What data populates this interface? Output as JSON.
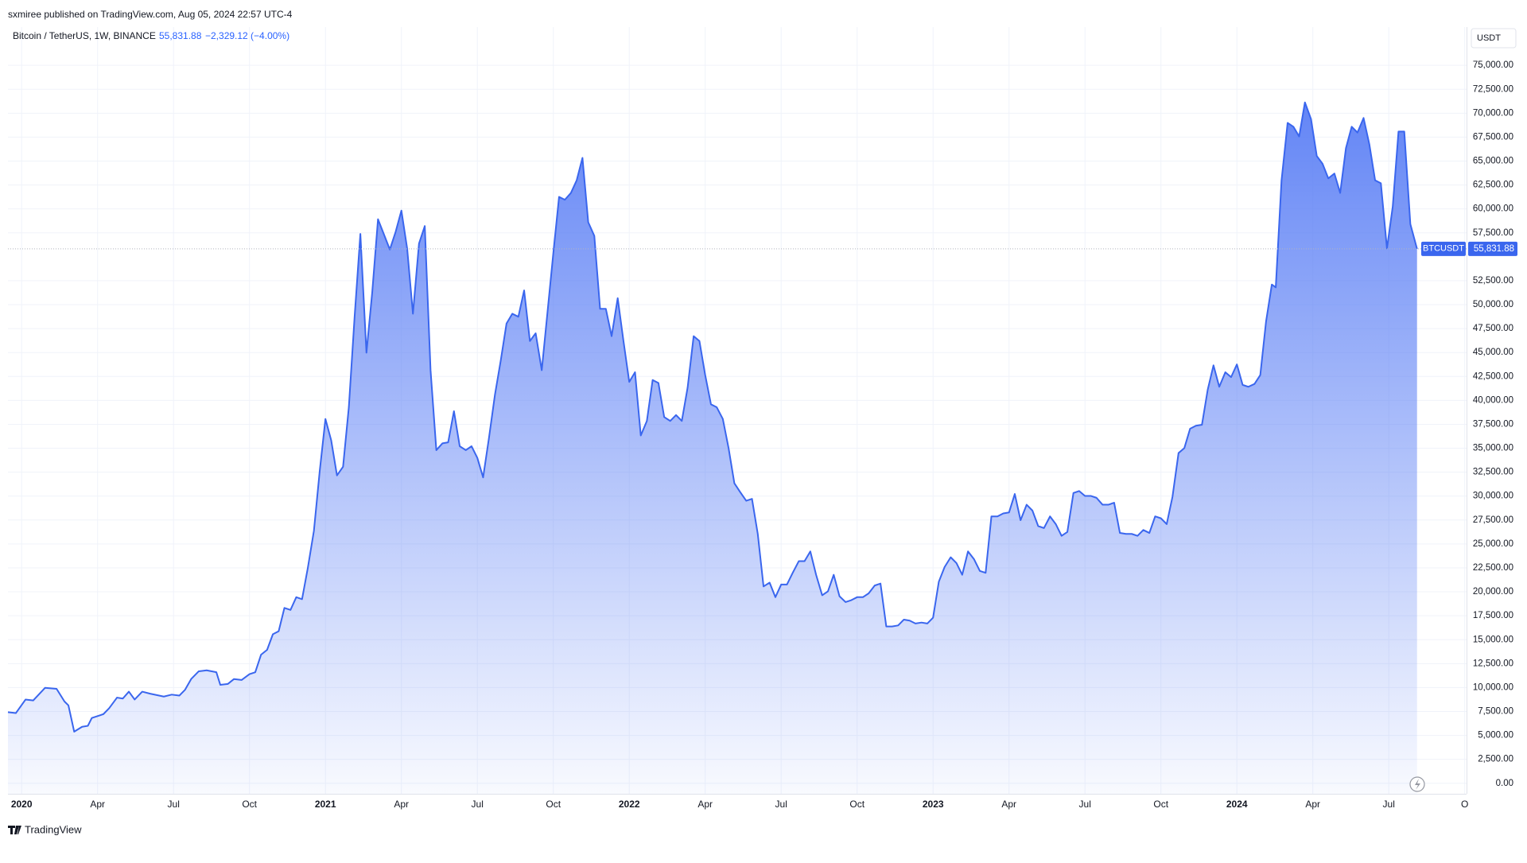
{
  "publisher_line": "sxmiree published on TradingView.com, Aug 05, 2024 22:57 UTC-4",
  "footer_brand": "TradingView",
  "chart_data": {
    "type": "area",
    "symbol": "Bitcoin / TetherUS, 1W, BINANCE",
    "last_price": "55,831.88",
    "change": "−2,329.12 (−4.00%)",
    "currency": "USDT",
    "price_tag": "55,831.88",
    "grid": true,
    "fill_color": "#5b7ff5",
    "xlim": [
      2019.955,
      2024.756
    ],
    "ylim": [
      -1100,
      79000
    ],
    "xticks": [
      2020,
      {
        "value": 2020.25,
        "label": "Apr"
      },
      {
        "value": 2020.5,
        "label": "Jul"
      },
      {
        "value": 2020.75,
        "label": "Oct"
      },
      2021,
      {
        "value": 2021.25,
        "label": "Apr"
      },
      {
        "value": 2021.5,
        "label": "Jul"
      },
      {
        "value": 2021.75,
        "label": "Oct"
      },
      2022,
      {
        "value": 2022.25,
        "label": "Apr"
      },
      {
        "value": 2022.5,
        "label": "Jul"
      },
      {
        "value": 2022.75,
        "label": "Oct"
      },
      2023,
      {
        "value": 2023.25,
        "label": "Apr"
      },
      {
        "value": 2023.5,
        "label": "Jul"
      },
      {
        "value": 2023.75,
        "label": "Oct"
      },
      2024,
      {
        "value": 2024.25,
        "label": "Apr"
      },
      {
        "value": 2024.5,
        "label": "Jul"
      },
      {
        "value": 2024.75,
        "label": "O"
      }
    ],
    "yticks": [
      {
        "value": 0,
        "label": "0.00"
      },
      {
        "value": 2500,
        "label": "2,500.00"
      },
      {
        "value": 5000,
        "label": "5,000.00"
      },
      {
        "value": 7500,
        "label": "7,500.00"
      },
      {
        "value": 10000,
        "label": "10,000.00"
      },
      {
        "value": 12500,
        "label": "12,500.00"
      },
      {
        "value": 15000,
        "label": "15,000.00"
      },
      {
        "value": 17500,
        "label": "17,500.00"
      },
      {
        "value": 20000,
        "label": "20,000.00"
      },
      {
        "value": 22500,
        "label": "22,500.00"
      },
      {
        "value": 25000,
        "label": "25,000.00"
      },
      {
        "value": 27500,
        "label": "27,500.00"
      },
      {
        "value": 30000,
        "label": "30,000.00"
      },
      {
        "value": 32500,
        "label": "32,500.00"
      },
      {
        "value": 35000,
        "label": "35,000.00"
      },
      {
        "value": 37500,
        "label": "37,500.00"
      },
      {
        "value": 40000,
        "label": "40,000.00"
      },
      {
        "value": 42500,
        "label": "42,500.00"
      },
      {
        "value": 45000,
        "label": "45,000.00"
      },
      {
        "value": 47500,
        "label": "47,500.00"
      },
      {
        "value": 50000,
        "label": "50,000.00"
      },
      {
        "value": 52500,
        "label": "52,500.00"
      },
      {
        "value": 57500,
        "label": "57,500.00"
      },
      {
        "value": 60000,
        "label": "60,000.00"
      },
      {
        "value": 62500,
        "label": "62,500.00"
      },
      {
        "value": 65000,
        "label": "65,000.00"
      },
      {
        "value": 67500,
        "label": "67,500.00"
      },
      {
        "value": 70000,
        "label": "70,000.00"
      },
      {
        "value": 72500,
        "label": "72,500.00"
      },
      {
        "value": 75000,
        "label": "75,000.00"
      }
    ],
    "x": [
      2019.955,
      2019.981,
      2020.013,
      2020.038,
      2020.077,
      2020.115,
      2020.141,
      2020.154,
      2020.173,
      2020.199,
      2020.218,
      2020.231,
      2020.269,
      2020.288,
      2020.314,
      2020.333,
      2020.353,
      2020.372,
      2020.397,
      2020.423,
      2020.468,
      2020.494,
      2020.519,
      2020.538,
      2020.558,
      2020.583,
      2020.609,
      2020.641,
      2020.654,
      2020.679,
      2020.699,
      2020.724,
      2020.75,
      2020.769,
      2020.788,
      2020.808,
      2020.827,
      2020.846,
      2020.865,
      2020.885,
      2020.904,
      2020.923,
      2020.942,
      2020.962,
      2020.981,
      2021.0,
      2021.019,
      2021.038,
      2021.058,
      2021.077,
      2021.096,
      2021.115,
      2021.135,
      2021.154,
      2021.173,
      2021.192,
      2021.212,
      2021.231,
      2021.25,
      2021.269,
      2021.288,
      2021.308,
      2021.327,
      2021.346,
      2021.365,
      2021.385,
      2021.404,
      2021.423,
      2021.442,
      2021.462,
      2021.481,
      2021.5,
      2021.519,
      2021.538,
      2021.558,
      2021.577,
      2021.596,
      2021.615,
      2021.635,
      2021.654,
      2021.673,
      2021.692,
      2021.712,
      2021.731,
      2021.75,
      2021.769,
      2021.788,
      2021.808,
      2021.827,
      2021.846,
      2021.865,
      2021.885,
      2021.904,
      2021.923,
      2021.942,
      2021.962,
      2021.981,
      2022.0,
      2022.019,
      2022.038,
      2022.058,
      2022.077,
      2022.096,
      2022.115,
      2022.135,
      2022.154,
      2022.173,
      2022.192,
      2022.212,
      2022.231,
      2022.25,
      2022.269,
      2022.288,
      2022.308,
      2022.327,
      2022.346,
      2022.365,
      2022.385,
      2022.404,
      2022.423,
      2022.442,
      2022.462,
      2022.481,
      2022.5,
      2022.519,
      2022.538,
      2022.558,
      2022.577,
      2022.596,
      2022.615,
      2022.635,
      2022.654,
      2022.673,
      2022.692,
      2022.712,
      2022.731,
      2022.75,
      2022.769,
      2022.788,
      2022.808,
      2022.827,
      2022.846,
      2022.865,
      2022.885,
      2022.904,
      2022.923,
      2022.942,
      2022.962,
      2022.981,
      2023.0,
      2023.019,
      2023.038,
      2023.058,
      2023.077,
      2023.096,
      2023.115,
      2023.135,
      2023.154,
      2023.173,
      2023.192,
      2023.212,
      2023.231,
      2023.25,
      2023.269,
      2023.288,
      2023.308,
      2023.327,
      2023.346,
      2023.365,
      2023.385,
      2023.404,
      2023.423,
      2023.442,
      2023.462,
      2023.481,
      2023.5,
      2023.519,
      2023.538,
      2023.558,
      2023.577,
      2023.596,
      2023.615,
      2023.635,
      2023.654,
      2023.673,
      2023.692,
      2023.712,
      2023.731,
      2023.75,
      2023.769,
      2023.788,
      2023.808,
      2023.827,
      2023.846,
      2023.865,
      2023.885,
      2023.904,
      2023.923,
      2023.942,
      2023.962,
      2023.981,
      2024.0,
      2024.019,
      2024.038,
      2024.058,
      2024.077,
      2024.096,
      2024.115,
      2024.128,
      2024.147,
      2024.167,
      2024.186,
      2024.205,
      2024.224,
      2024.244,
      2024.263,
      2024.282,
      2024.301,
      2024.321,
      2024.34,
      2024.359,
      2024.378,
      2024.397,
      2024.417,
      2024.436,
      2024.455,
      2024.474,
      2024.494,
      2024.513,
      2024.532,
      2024.551,
      2024.571,
      2024.593
    ],
    "series": [
      {
        "name": "BTCUSDT",
        "color": "#3a66ee",
        "values": [
          7430,
          7330,
          8750,
          8650,
          9970,
          9870,
          8550,
          8140,
          5390,
          5900,
          6000,
          6820,
          7220,
          7840,
          8950,
          8850,
          9570,
          8750,
          9570,
          9360,
          9060,
          9260,
          9160,
          9770,
          10890,
          11700,
          11800,
          11600,
          10280,
          10380,
          10890,
          10790,
          11400,
          11600,
          13430,
          13940,
          15570,
          15880,
          18320,
          18110,
          19440,
          19230,
          22490,
          26360,
          32560,
          38060,
          35820,
          32160,
          33070,
          39280,
          48740,
          57390,
          44980,
          51290,
          58920,
          57390,
          55760,
          57600,
          59830,
          55870,
          49050,
          56380,
          58210,
          43150,
          34800,
          35510,
          35620,
          38870,
          35210,
          34800,
          35210,
          33990,
          31950,
          36020,
          40600,
          44160,
          48030,
          49050,
          48740,
          51490,
          46200,
          47010,
          43150,
          49250,
          55360,
          61260,
          60960,
          61670,
          62990,
          65330,
          58610,
          57190,
          49560,
          49560,
          46710,
          50680,
          46200,
          41930,
          42940,
          36330,
          37850,
          42130,
          41820,
          38260,
          37850,
          38470,
          37850,
          41310,
          46710,
          46200,
          42640,
          39590,
          39280,
          38060,
          35010,
          31340,
          30430,
          29510,
          29710,
          26050,
          20560,
          20960,
          19440,
          20760,
          20760,
          21980,
          23200,
          23200,
          24220,
          21780,
          19640,
          20050,
          21780,
          19540,
          18930,
          19130,
          19440,
          19440,
          19840,
          20660,
          20860,
          16380,
          16380,
          16490,
          17100,
          16990,
          16690,
          16790,
          16690,
          17300,
          21060,
          22590,
          23610,
          23000,
          21780,
          24220,
          23400,
          22180,
          21980,
          27880,
          27880,
          28190,
          28290,
          30220,
          27480,
          29100,
          28490,
          26870,
          26660,
          27880,
          27070,
          25850,
          26250,
          30320,
          30530,
          30020,
          30020,
          29820,
          29100,
          29100,
          29310,
          26150,
          26050,
          26050,
          25850,
          26460,
          26150,
          27880,
          27680,
          27070,
          29920,
          34500,
          35010,
          37040,
          37350,
          37450,
          41110,
          43660,
          41420,
          42940,
          42430,
          43760,
          41620,
          41420,
          41720,
          42640,
          48230,
          52100,
          51800,
          62990,
          68990,
          68590,
          67570,
          71130,
          69400,
          65530,
          64720,
          63190,
          63700,
          61670,
          66350,
          68590,
          67980,
          69500,
          66760,
          62990,
          62680,
          55870,
          60240,
          68080,
          68080,
          58410,
          55831.88
        ]
      }
    ]
  }
}
